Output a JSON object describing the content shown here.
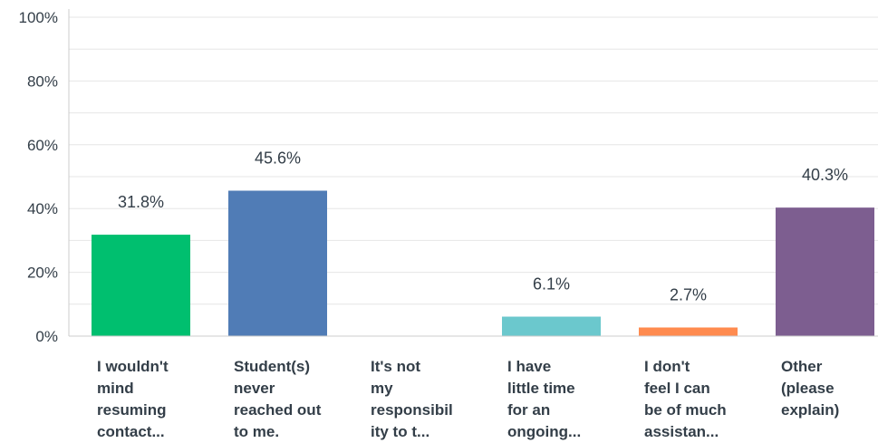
{
  "chart_data": {
    "type": "bar",
    "categories": [
      [
        "I wouldn't",
        "mind",
        "resuming",
        "contact..."
      ],
      [
        "Student(s)",
        "never",
        "reached out",
        "to me."
      ],
      [
        "It's not",
        "my",
        "responsibil",
        "ity to t..."
      ],
      [
        "I have",
        "little time",
        "for an",
        "ongoing..."
      ],
      [
        "I don't",
        "feel I can",
        "be of much",
        "assistan..."
      ],
      [
        "Other",
        "(please",
        "explain)"
      ]
    ],
    "values": [
      31.8,
      45.6,
      0,
      6.1,
      2.7,
      40.3
    ],
    "data_labels": [
      "31.8%",
      "45.6%",
      "",
      "6.1%",
      "2.7%",
      "40.3%"
    ],
    "colors": [
      "#00bf6f",
      "#507cb6",
      "#f9be00",
      "#6bc8cd",
      "#ff8b4f",
      "#7d5e90"
    ],
    "y_ticks": [
      "0%",
      "20%",
      "40%",
      "60%",
      "80%",
      "100%"
    ],
    "ylim": [
      0,
      100
    ],
    "grid": true,
    "grid_color": "#e6e6e6",
    "axis_color": "#cccccc",
    "text_color": "#333e48"
  }
}
